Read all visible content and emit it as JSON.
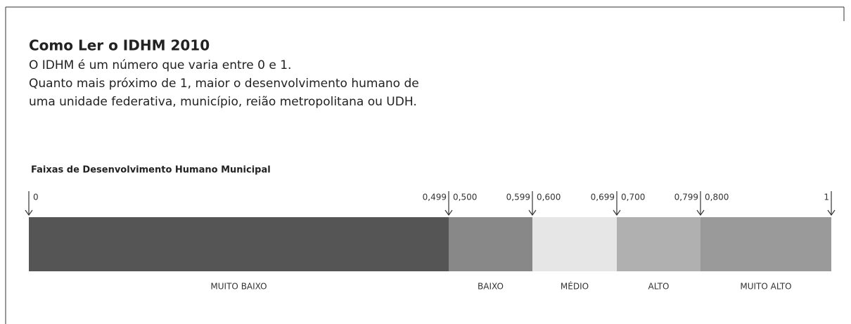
{
  "title": "Como Ler o IDHM 2010",
  "description": [
    "O IDHM é um número que varia entre 0 e 1.",
    "Quanto mais próximo de 1, maior o desenvolvimento humano de",
    "uma unidade federativa, município, reião metropolitana ou UDH."
  ],
  "scale_title": "Faixas de Desenvolvimento Humano Municipal",
  "bands": [
    {
      "label": "MUITO BAIXO",
      "min": "0",
      "max": "0,499",
      "color": "#555555"
    },
    {
      "label": "BAIXO",
      "min": "0,500",
      "max": "0,599",
      "color": "#888888"
    },
    {
      "label": "MÉDIO",
      "min": "0,600",
      "max": "0,699",
      "color": "#e6e6e6"
    },
    {
      "label": "ALTO",
      "min": "0,700",
      "max": "0,799",
      "color": "#b0b0b0"
    },
    {
      "label": "MUITO ALTO",
      "min": "0,800",
      "max": "1",
      "color": "#9a9a9a"
    }
  ]
}
